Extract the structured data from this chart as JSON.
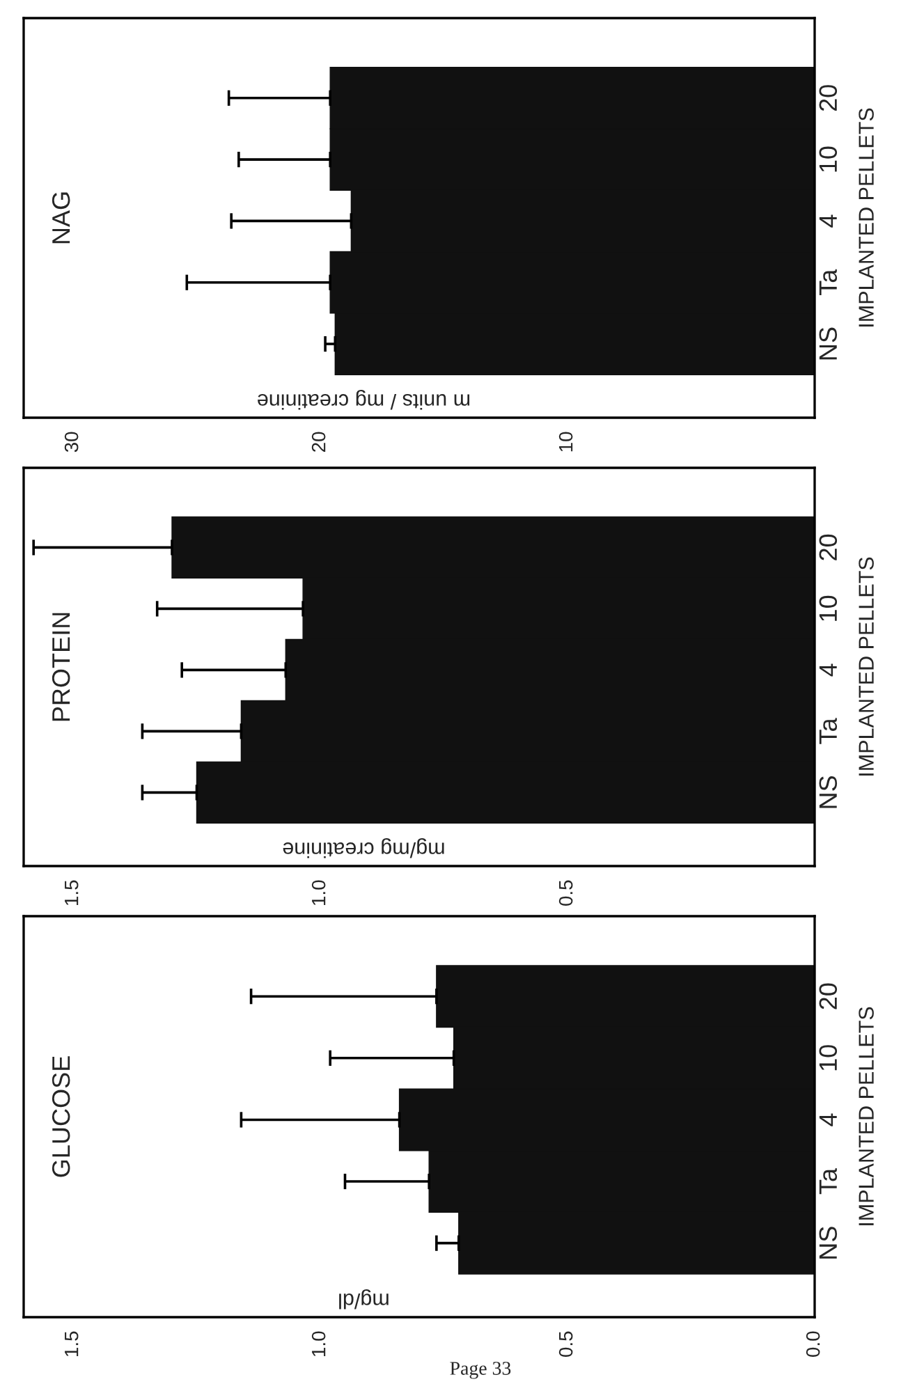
{
  "chart_data": [
    {
      "type": "bar",
      "orientation": "horizontal",
      "title": "NAG",
      "xlabel": "m units / mg creatinine",
      "ylabel": "IMPLANTED PELLETS",
      "categories": [
        "20",
        "10",
        "4",
        "Ta",
        "NS"
      ],
      "values": [
        19.6,
        19.6,
        18.75,
        19.6,
        19.4
      ],
      "errors": [
        [
          19.6,
          23.7
        ],
        [
          19.6,
          23.3
        ],
        [
          18.75,
          23.6
        ],
        [
          19.6,
          25.4
        ],
        [
          19.4,
          19.8
        ]
      ],
      "color": "#111111",
      "xlim": [
        32,
        0
      ],
      "xticks": [
        30,
        20,
        10
      ]
    },
    {
      "type": "bar",
      "orientation": "horizontal",
      "title": "PROTEIN",
      "xlabel": "mg/mg creatinine",
      "ylabel": "IMPLANTED PELLETS",
      "categories": [
        "20",
        "10",
        "4",
        "Ta",
        "NS"
      ],
      "values": [
        1.3,
        1.035,
        1.07,
        1.16,
        1.25
      ],
      "errors": [
        [
          1.3,
          1.58
        ],
        [
          1.035,
          1.33
        ],
        [
          1.07,
          1.28
        ],
        [
          1.16,
          1.36
        ],
        [
          1.25,
          1.36
        ]
      ],
      "color": "#111111",
      "xlim": [
        1.6,
        0
      ],
      "xticks": [
        {
          "value": 1.5,
          "label": "1.5"
        },
        {
          "value": 1.0,
          "label": "1.0"
        },
        {
          "value": 0.5,
          "label": "0.5"
        }
      ]
    },
    {
      "type": "bar",
      "orientation": "horizontal",
      "title": "GLUCOSE",
      "xlabel": "mg/dl",
      "ylabel": "IMPLANTED PELLETS",
      "categories": [
        "20",
        "10",
        "4",
        "Ta",
        "NS"
      ],
      "values": [
        0.765,
        0.73,
        0.84,
        0.78,
        0.72
      ],
      "errors": [
        [
          0.765,
          1.14
        ],
        [
          0.73,
          0.98
        ],
        [
          0.84,
          1.16
        ],
        [
          0.78,
          0.95
        ],
        [
          0.72,
          0.765
        ]
      ],
      "color": "#111111",
      "xlim": [
        1.6,
        0
      ],
      "xticks": [
        {
          "value": 1.5,
          "label": "1.5"
        },
        {
          "value": 1.0,
          "label": "1.0"
        },
        {
          "value": 0.5,
          "label": "0.5"
        },
        {
          "value": 0.0,
          "label": "0.0"
        }
      ],
      "annotations": [
        "Page 33"
      ]
    }
  ]
}
